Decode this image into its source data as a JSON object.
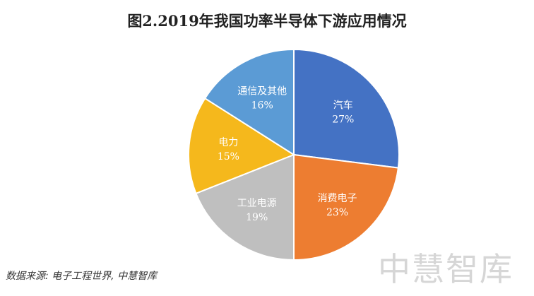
{
  "chart_data": {
    "type": "pie",
    "title": "图2.2019年我国功率半导体下游应用情况",
    "slices": [
      {
        "label": "汽车",
        "value": 27,
        "value_label": "27%",
        "color": "#4472c4"
      },
      {
        "label": "消费电子",
        "value": 23,
        "value_label": "23%",
        "color": "#ed7d31"
      },
      {
        "label": "工业电源",
        "value": 19,
        "value_label": "19%",
        "color": "#bfbfbf"
      },
      {
        "label": "电力",
        "value": 15,
        "value_label": "15%",
        "color": "#f5b81c"
      },
      {
        "label": "通信及其他",
        "value": 16,
        "value_label": "16%",
        "color": "#5b9bd5"
      }
    ],
    "start": "12 o'clock",
    "direction": "clockwise",
    "legend": "none (labels inside slices)"
  },
  "source": "数据来源: 电子工程世界, 中慧智库",
  "watermark": "中慧智库"
}
